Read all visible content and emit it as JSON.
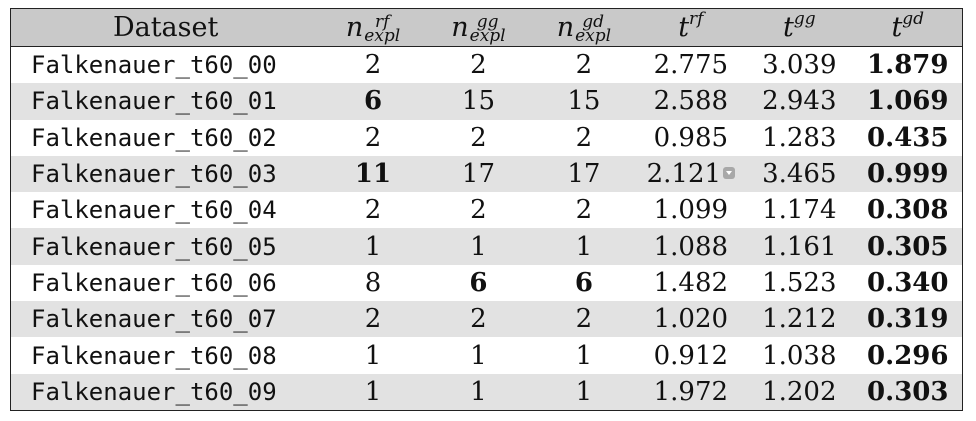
{
  "table": {
    "headers": [
      {
        "base": "Dataset",
        "sup": "",
        "sub": ""
      },
      {
        "base": "n",
        "sup": "rf",
        "sub": "expl"
      },
      {
        "base": "n",
        "sup": "gg",
        "sub": "expl"
      },
      {
        "base": "n",
        "sup": "gd",
        "sub": "expl"
      },
      {
        "base": "t",
        "sup": "rf",
        "sub": ""
      },
      {
        "base": "t",
        "sup": "gg",
        "sub": ""
      },
      {
        "base": "t",
        "sup": "gd",
        "sub": ""
      }
    ],
    "rows": [
      {
        "dataset": "Falkenauer_t60_00",
        "n_rf": "2",
        "n_gg": "2",
        "n_gd": "2",
        "t_rf": "2.775",
        "t_gg": "3.039",
        "t_gd": "1.879"
      },
      {
        "dataset": "Falkenauer_t60_01",
        "n_rf": "6",
        "n_gg": "15",
        "n_gd": "15",
        "t_rf": "2.588",
        "t_gg": "2.943",
        "t_gd": "1.069"
      },
      {
        "dataset": "Falkenauer_t60_02",
        "n_rf": "2",
        "n_gg": "2",
        "n_gd": "2",
        "t_rf": "0.985",
        "t_gg": "1.283",
        "t_gd": "0.435"
      },
      {
        "dataset": "Falkenauer_t60_03",
        "n_rf": "11",
        "n_gg": "17",
        "n_gd": "17",
        "t_rf": "2.121",
        "t_gg": "3.465",
        "t_gd": "0.999"
      },
      {
        "dataset": "Falkenauer_t60_04",
        "n_rf": "2",
        "n_gg": "2",
        "n_gd": "2",
        "t_rf": "1.099",
        "t_gg": "1.174",
        "t_gd": "0.308"
      },
      {
        "dataset": "Falkenauer_t60_05",
        "n_rf": "1",
        "n_gg": "1",
        "n_gd": "1",
        "t_rf": "1.088",
        "t_gg": "1.161",
        "t_gd": "0.305"
      },
      {
        "dataset": "Falkenauer_t60_06",
        "n_rf": "8",
        "n_gg": "6",
        "n_gd": "6",
        "t_rf": "1.482",
        "t_gg": "1.523",
        "t_gd": "0.340"
      },
      {
        "dataset": "Falkenauer_t60_07",
        "n_rf": "2",
        "n_gg": "2",
        "n_gd": "2",
        "t_rf": "1.020",
        "t_gg": "1.212",
        "t_gd": "0.319"
      },
      {
        "dataset": "Falkenauer_t60_08",
        "n_rf": "1",
        "n_gg": "1",
        "n_gd": "1",
        "t_rf": "0.912",
        "t_gg": "1.038",
        "t_gd": "0.296"
      },
      {
        "dataset": "Falkenauer_t60_09",
        "n_rf": "1",
        "n_gg": "1",
        "n_gd": "1",
        "t_rf": "1.972",
        "t_gg": "1.202",
        "t_gd": "0.303"
      }
    ],
    "bold_cells": [
      [
        0,
        "t_gd"
      ],
      [
        1,
        "n_rf"
      ],
      [
        1,
        "t_gd"
      ],
      [
        2,
        "t_gd"
      ],
      [
        3,
        "n_rf"
      ],
      [
        3,
        "t_gd"
      ],
      [
        4,
        "t_gd"
      ],
      [
        5,
        "t_gd"
      ],
      [
        6,
        "n_gg"
      ],
      [
        6,
        "n_gd"
      ],
      [
        6,
        "t_gd"
      ],
      [
        7,
        "t_gd"
      ],
      [
        8,
        "t_gd"
      ],
      [
        9,
        "t_gd"
      ]
    ],
    "shaded_rows": [
      1,
      3,
      5,
      7,
      9
    ],
    "marker_cell": [
      3,
      "t_rf"
    ],
    "colors": {
      "header_bg": "#c9c9c9",
      "shade_bg": "#e2e2e2",
      "border": "#222222"
    }
  }
}
